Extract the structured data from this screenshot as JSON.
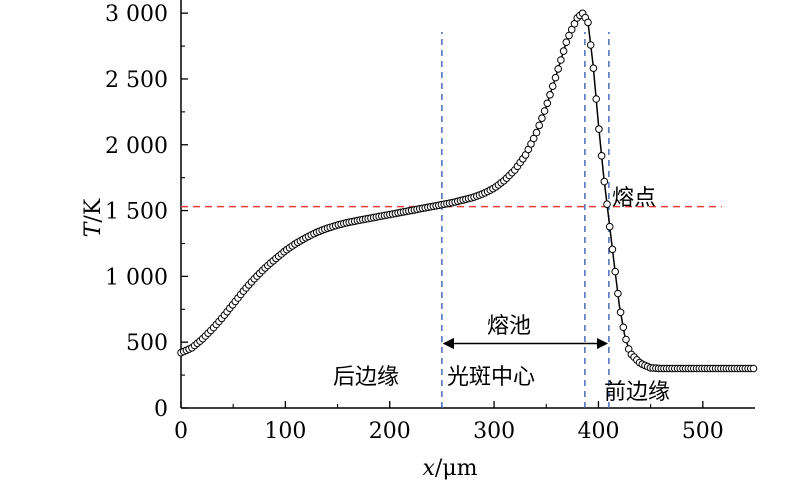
{
  "chart_data": {
    "type": "line",
    "xlabel": {
      "italic": "x",
      "rest": "/μm"
    },
    "ylabel": {
      "italic": "T",
      "rest": "/K"
    },
    "xlim": [
      0,
      550
    ],
    "ylim": [
      0,
      3100
    ],
    "xticks": [
      0,
      100,
      200,
      300,
      400,
      500
    ],
    "yticks": [
      0,
      500,
      1000,
      1500,
      2000,
      2500,
      3000
    ],
    "xtick_labels": [
      "0",
      "100",
      "200",
      "300",
      "400",
      "500"
    ],
    "ytick_labels": [
      "0",
      "500",
      "1 000",
      "1 500",
      "2 000",
      "2 500",
      "3 000"
    ],
    "grid": false,
    "series": [
      {
        "marker": "open-circle",
        "line_color": "#000000",
        "x": [
          0,
          10,
          20,
          30,
          40,
          50,
          60,
          70,
          80,
          90,
          100,
          110,
          120,
          130,
          140,
          150,
          160,
          170,
          180,
          190,
          200,
          210,
          220,
          230,
          240,
          250,
          260,
          270,
          280,
          290,
          300,
          310,
          320,
          330,
          340,
          350,
          360,
          370,
          380,
          385,
          390,
          395,
          400,
          405,
          410,
          415,
          420,
          425,
          430,
          440,
          450,
          460,
          470,
          480,
          490,
          500,
          510,
          520,
          530,
          540,
          550
        ],
        "y": [
          420,
          455,
          520,
          600,
          690,
          790,
          890,
          980,
          1060,
          1130,
          1195,
          1250,
          1295,
          1335,
          1365,
          1390,
          1410,
          1425,
          1440,
          1455,
          1470,
          1485,
          1500,
          1515,
          1530,
          1545,
          1560,
          1580,
          1600,
          1630,
          1670,
          1730,
          1810,
          1920,
          2080,
          2290,
          2540,
          2800,
          2970,
          3000,
          2930,
          2600,
          2150,
          1760,
          1430,
          1100,
          780,
          560,
          420,
          340,
          305,
          300,
          300,
          300,
          300,
          300,
          300,
          300,
          300,
          300,
          300
        ]
      }
    ],
    "reference_line": {
      "y": 1530,
      "color": "#e8413b",
      "style": "dashed",
      "label": "熔点"
    },
    "vertical_lines": [
      {
        "x": 250,
        "color": "#3f5fb5",
        "style": "dashed"
      },
      {
        "x": 387,
        "color": "#3f5fb5",
        "style": "dashed"
      },
      {
        "x": 410,
        "color": "#3f5fb5",
        "style": "dashed"
      }
    ],
    "span_arrow": {
      "x0": 250,
      "x1": 410,
      "y": 490,
      "label": "熔池"
    },
    "annotations": {
      "rear_edge": "后边缘",
      "spot_center": "光斑中心",
      "front_edge": "前边缘"
    }
  }
}
